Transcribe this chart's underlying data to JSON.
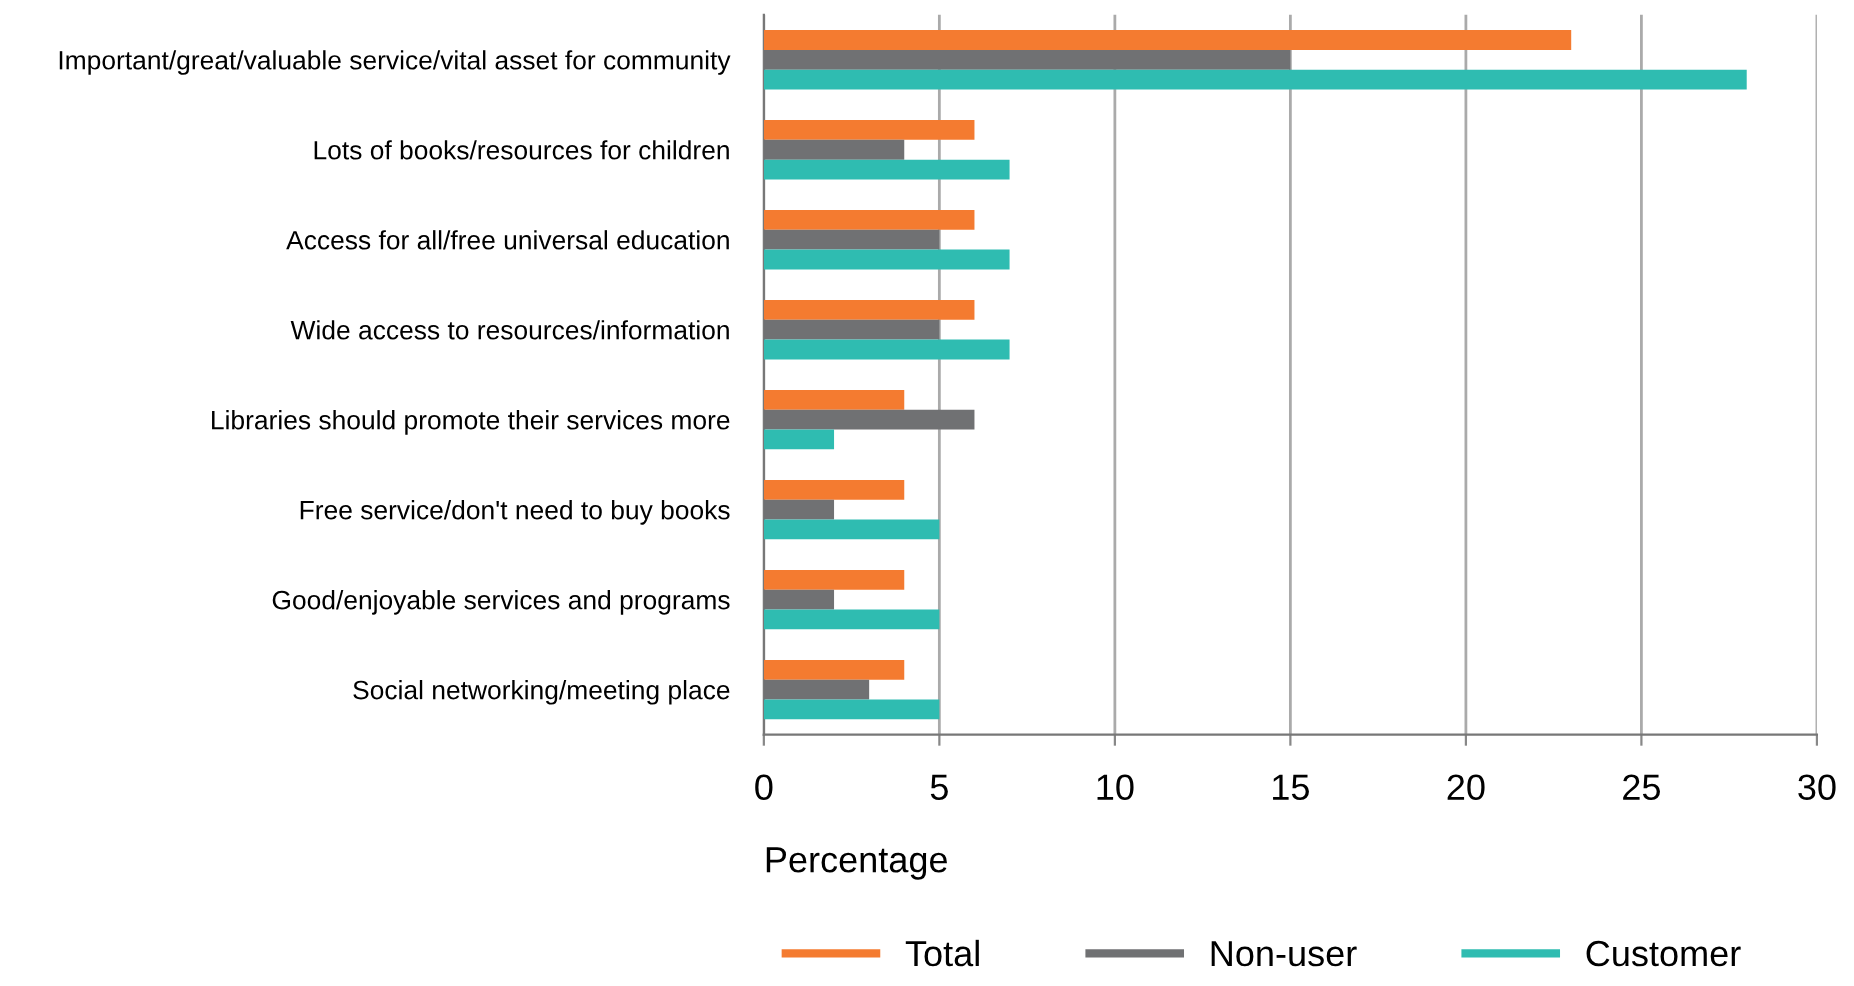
{
  "chart_data": {
    "type": "bar",
    "orientation": "horizontal",
    "xlabel": "Percentage",
    "categories": [
      "Important/great/valuable service/vital asset for community",
      "Lots of books/resources for children",
      "Access for all/free universal education",
      "Wide access to resources/information",
      "Libraries should promote their services more",
      "Free service/don't need to buy books",
      "Good/enjoyable services and programs",
      "Social networking/meeting place"
    ],
    "series": [
      {
        "name": "Total",
        "color": "#f47b30",
        "values": [
          23,
          6,
          6,
          6,
          4,
          4,
          4,
          4
        ]
      },
      {
        "name": "Non-user",
        "color": "#707173",
        "values": [
          15,
          4,
          5,
          5,
          6,
          2,
          2,
          3
        ]
      },
      {
        "name": "Customer",
        "color": "#2fbcb1",
        "values": [
          28,
          7,
          7,
          7,
          2,
          5,
          5,
          5
        ]
      }
    ],
    "xlim": [
      0,
      30
    ],
    "xticks": [
      0,
      5,
      10,
      15,
      20,
      25,
      30
    ],
    "grid": "x",
    "legend": "bottom"
  }
}
